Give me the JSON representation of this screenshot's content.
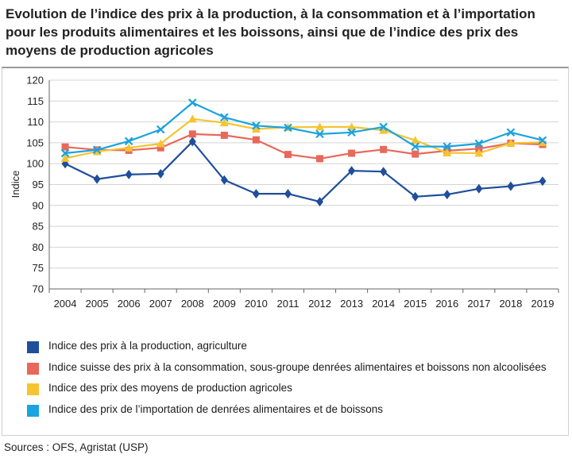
{
  "title": "Evolution de l’indice des prix à la production, à la consommation et à l’importation pour les produits alimentaires et les boissons, ainsi que de l’indice des prix des moyens de production agricoles",
  "source": "Sources : OFS, Agristat (USP)",
  "chart_data": {
    "type": "line",
    "title": "Evolution de l’indice des prix à la production, à la consommation et à l’importation pour les produits alimentaires et les boissons, ainsi que de l’indice des prix des moyens de production agricoles",
    "xlabel": "",
    "ylabel": "Indice",
    "ylim": [
      70,
      120
    ],
    "yticks": [
      "70",
      "75",
      "80",
      "85",
      "90",
      "95",
      "100",
      "105",
      "110",
      "115",
      "120"
    ],
    "grid": true,
    "legend_position": "bottom",
    "categories": [
      "2004",
      "2005",
      "2006",
      "2007",
      "2008",
      "2009",
      "2010",
      "2011",
      "2012",
      "2013",
      "2014",
      "2015",
      "2016",
      "2017",
      "2018",
      "2019"
    ],
    "series": [
      {
        "name": "Indice des prix à la production, agriculture",
        "color": "#1f4e9b",
        "marker": "diamond",
        "values": [
          100.0,
          96.3,
          97.4,
          97.6,
          105.3,
          96.1,
          92.8,
          92.8,
          90.9,
          98.3,
          98.1,
          92.1,
          92.6,
          94.0,
          94.6,
          95.8
        ]
      },
      {
        "name": "Indice suisse des prix à la consommation, sous-groupe denrées alimentaires et boissons non alcoolisées",
        "color": "#e8685a",
        "marker": "square",
        "values": [
          104.0,
          103.3,
          103.2,
          103.8,
          107.1,
          106.8,
          105.7,
          102.2,
          101.2,
          102.5,
          103.4,
          102.3,
          103.1,
          103.6,
          104.9,
          104.6
        ]
      },
      {
        "name": "Indice des prix des moyens de production agricoles",
        "color": "#f5c431",
        "marker": "triangle",
        "values": [
          101.3,
          102.9,
          103.8,
          104.8,
          110.7,
          109.8,
          108.3,
          108.7,
          108.8,
          108.8,
          108.0,
          105.6,
          102.6,
          102.5,
          104.9,
          105.1
        ]
      },
      {
        "name": "Indice des prix de l’importation de denrées alimentaires et de boissons",
        "color": "#1aa3df",
        "marker": "x",
        "values": [
          102.5,
          103.3,
          105.4,
          108.2,
          114.6,
          111.1,
          109.1,
          108.6,
          107.1,
          107.5,
          108.8,
          104.1,
          104.1,
          104.8,
          107.5,
          105.6
        ]
      }
    ]
  }
}
